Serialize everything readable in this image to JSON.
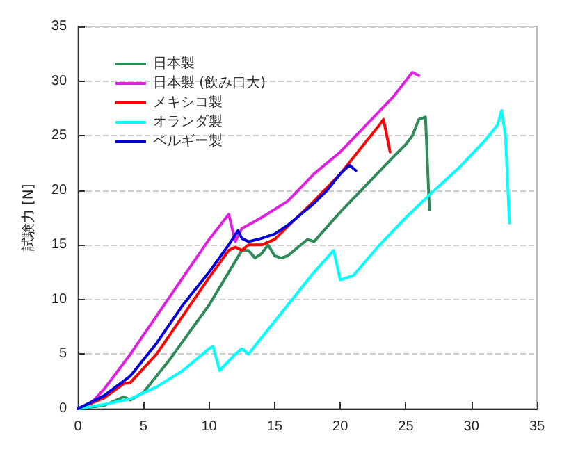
{
  "chart_data": {
    "type": "line",
    "ylabel": "試験力 [N]",
    "xlim": [
      0,
      35
    ],
    "ylim": [
      0,
      35
    ],
    "xticks": [
      0,
      5,
      10,
      15,
      20,
      25,
      30,
      35
    ],
    "yticks": [
      0,
      5,
      10,
      15,
      20,
      25,
      30,
      35
    ],
    "grid": "y",
    "legend": "top left",
    "marker": "none",
    "line_style": "solid",
    "series": [
      {
        "name": "日本製",
        "color": "#2e8b57",
        "x": [
          0,
          2,
          3.5,
          4,
          5,
          7,
          10,
          12,
          12.5,
          13,
          13.5,
          14,
          14.5,
          15,
          15.5,
          16,
          17,
          17.5,
          18,
          20,
          22,
          24,
          25,
          25.5,
          26,
          26.5,
          26.8
        ],
        "values": [
          0,
          0.3,
          1.1,
          0.8,
          1.5,
          4.5,
          9.5,
          13.5,
          14.5,
          14.5,
          13.8,
          14.2,
          15,
          14,
          13.8,
          14,
          15,
          15.5,
          15.3,
          18,
          20.5,
          23,
          24.2,
          25,
          26.5,
          26.7,
          18.2
        ]
      },
      {
        "name": "日本製 (飲み口大)",
        "color": "#e020e0",
        "x": [
          0,
          1,
          2,
          4,
          6,
          8,
          10,
          11.5,
          12,
          12.5,
          14,
          16,
          18,
          20,
          22,
          24,
          25.5,
          26
        ],
        "values": [
          0,
          0.5,
          1.8,
          5,
          8.5,
          12,
          15.5,
          17.8,
          15.3,
          16.5,
          17.5,
          19,
          21.5,
          23.5,
          26,
          28.5,
          30.8,
          30.5
        ]
      },
      {
        "name": "メキシコ製",
        "color": "#ff0000",
        "x": [
          0,
          2,
          3.5,
          4,
          6,
          8,
          10,
          11.5,
          12,
          12.5,
          13,
          14,
          15,
          16,
          18,
          20,
          22,
          23,
          23.3,
          23.8
        ],
        "values": [
          0,
          1,
          2.3,
          2.4,
          5,
          8.5,
          12,
          14.5,
          14.8,
          14.5,
          15,
          15,
          15.5,
          16.7,
          19,
          21.5,
          24.5,
          26,
          26.5,
          23.5
        ]
      },
      {
        "name": "オランダ製",
        "color": "#00ffff",
        "x": [
          0,
          2,
          4,
          6,
          8,
          10,
          10.3,
          10.8,
          12,
          12.5,
          13,
          14,
          16,
          18,
          19.5,
          20,
          21,
          23,
          25,
          27,
          29,
          31,
          32,
          32.3,
          32.6,
          32.9
        ],
        "values": [
          0,
          0.4,
          0.9,
          2,
          3.5,
          5.5,
          5.7,
          3.5,
          5,
          5.5,
          5,
          6.5,
          9.5,
          12.5,
          14.5,
          11.8,
          12.2,
          15,
          17.5,
          19.8,
          22,
          24.5,
          26,
          27.3,
          25,
          17
        ]
      },
      {
        "name": "ベルギー製",
        "color": "#0000dd",
        "x": [
          0,
          2,
          4,
          6,
          8,
          10,
          11.5,
          12.2,
          12.5,
          13,
          14,
          15,
          16,
          17.5,
          18,
          19,
          20,
          20.7,
          21.2
        ],
        "values": [
          0,
          1.2,
          3,
          6,
          9.5,
          12.5,
          15,
          16.3,
          15.6,
          15.3,
          15.6,
          16,
          16.8,
          18.3,
          18.8,
          20,
          21.5,
          22.3,
          21.8
        ]
      }
    ]
  }
}
